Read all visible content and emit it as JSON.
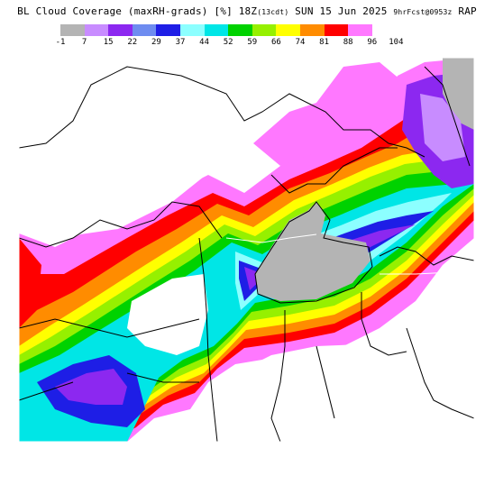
{
  "title": {
    "main": "BL Cloud Coverage (maxRH-grads) [%] 18Z",
    "tz": "(13cdt)",
    "date": "SUN 15 Jun 2025",
    "run": "9hrFcst@0953z",
    "model": "RAP"
  },
  "legend": {
    "ticks": [
      "-1",
      "7",
      "15",
      "22",
      "29",
      "37",
      "44",
      "52",
      "59",
      "66",
      "74",
      "81",
      "88",
      "96",
      "104"
    ],
    "colors": [
      "#b4b4b4",
      "#c88cff",
      "#8c28f0",
      "#6e8cf0",
      "#1e1ee6",
      "#8cffff",
      "#00e6e6",
      "#00d200",
      "#96f000",
      "#ffff00",
      "#ff8c00",
      "#ff0000",
      "#ff78ff",
      "#ffffff"
    ]
  }
}
